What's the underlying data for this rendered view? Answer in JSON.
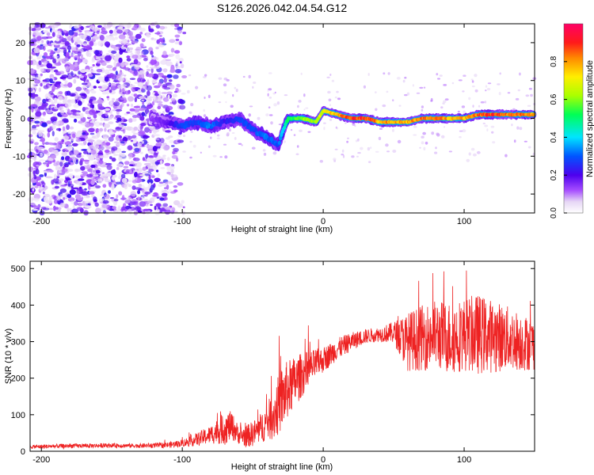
{
  "title": "S126.2026.042.04.54.G12",
  "colors": {
    "snr_line": "#ee2222",
    "axes": "#000000"
  },
  "chart_data": [
    {
      "type": "heatmap",
      "name": "spectrogram",
      "xlabel": "Height of straight line (km)",
      "ylabel": "Frequency (Hz)",
      "xlim": [
        -208,
        150
      ],
      "ylim": [
        -25,
        25
      ],
      "xticks": [
        -200,
        -100,
        0,
        100
      ],
      "yticks": [
        20,
        10,
        0,
        -10,
        -20
      ],
      "colorbar": {
        "label": "Normalized spectral amplitude",
        "range": [
          0,
          1
        ],
        "ticks": [
          0.0,
          0.2,
          0.4,
          0.6,
          0.8
        ],
        "tick_labels": [
          "0.0",
          "0.2",
          "0.4",
          "0.6",
          "0.8"
        ],
        "colormap": "rainbow (white-violet-blue-cyan-green-yellow-red-magenta)"
      },
      "trace": {
        "description": "Dominant frequency ridge vs height",
        "x": [
          -122,
          -110,
          -100,
          -90,
          -80,
          -70,
          -60,
          -50,
          -40,
          -32,
          -25,
          -15,
          -5,
          0,
          10,
          20,
          30,
          40,
          50,
          60,
          70,
          80,
          90,
          100,
          110,
          120,
          130,
          140,
          150
        ],
        "freq_hz": [
          0,
          -1,
          -2,
          -1,
          -2,
          -1,
          0,
          -3,
          -5,
          -7,
          0,
          0,
          -1,
          2,
          1,
          0,
          0,
          -1,
          -1,
          -1,
          0,
          0,
          0,
          0,
          1,
          1,
          1,
          1,
          1
        ],
        "amplitude": [
          0.15,
          0.2,
          0.3,
          0.3,
          0.35,
          0.25,
          0.3,
          0.3,
          0.35,
          0.3,
          0.55,
          0.65,
          0.7,
          0.75,
          0.85,
          0.95,
          0.95,
          0.85,
          0.85,
          0.85,
          0.9,
          0.9,
          0.85,
          0.85,
          0.9,
          0.95,
          0.9,
          0.9,
          0.85
        ]
      },
      "noise_region": {
        "x_range": [
          -208,
          -98
        ],
        "freq_range_hz": [
          -25,
          25
        ]
      }
    },
    {
      "type": "line",
      "name": "snr",
      "xlabel": "Height of straight line (km)",
      "ylabel": "SNR (10 * v/v)",
      "xlim": [
        -208,
        150
      ],
      "ylim": [
        0,
        520
      ],
      "xticks": [
        -200,
        -100,
        0,
        100
      ],
      "yticks": [
        0,
        100,
        200,
        300,
        400,
        500
      ],
      "series": [
        {
          "name": "SNR",
          "x": [
            -208,
            -190,
            -170,
            -150,
            -130,
            -110,
            -100,
            -90,
            -80,
            -75,
            -70,
            -65,
            -60,
            -55,
            -50,
            -45,
            -40,
            -35,
            -30,
            -25,
            -20,
            -15,
            -10,
            -5,
            0,
            10,
            20,
            30,
            40,
            50,
            60,
            70,
            80,
            90,
            100,
            110,
            120,
            130,
            140,
            150
          ],
          "mean": [
            12,
            14,
            15,
            16,
            15,
            17,
            22,
            32,
            45,
            55,
            62,
            70,
            45,
            40,
            48,
            60,
            80,
            100,
            140,
            170,
            190,
            210,
            225,
            240,
            250,
            280,
            300,
            315,
            320,
            325,
            300,
            310,
            320,
            310,
            320,
            320,
            315,
            310,
            300,
            290
          ],
          "spread": [
            5,
            6,
            6,
            6,
            6,
            8,
            10,
            18,
            25,
            35,
            45,
            40,
            25,
            30,
            35,
            40,
            50,
            70,
            90,
            80,
            70,
            60,
            50,
            40,
            35,
            30,
            25,
            20,
            20,
            30,
            80,
            90,
            95,
            100,
            100,
            110,
            100,
            90,
            80,
            70
          ]
        }
      ]
    }
  ]
}
